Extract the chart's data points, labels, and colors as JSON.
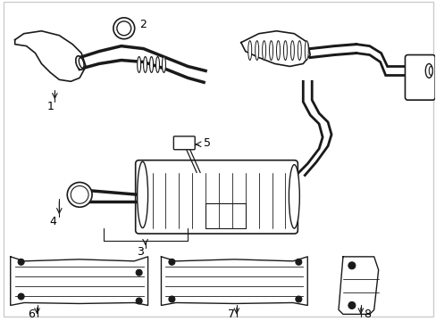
{
  "title": "",
  "background_color": "#ffffff",
  "border_color": "#cccccc",
  "line_color": "#1a1a1a",
  "label_color": "#000000",
  "labels": [
    "1",
    "2",
    "3",
    "4",
    "5",
    "6",
    "7",
    "8"
  ],
  "fig_width": 4.89,
  "fig_height": 3.6,
  "dpi": 100,
  "border_linewidth": 1.0
}
